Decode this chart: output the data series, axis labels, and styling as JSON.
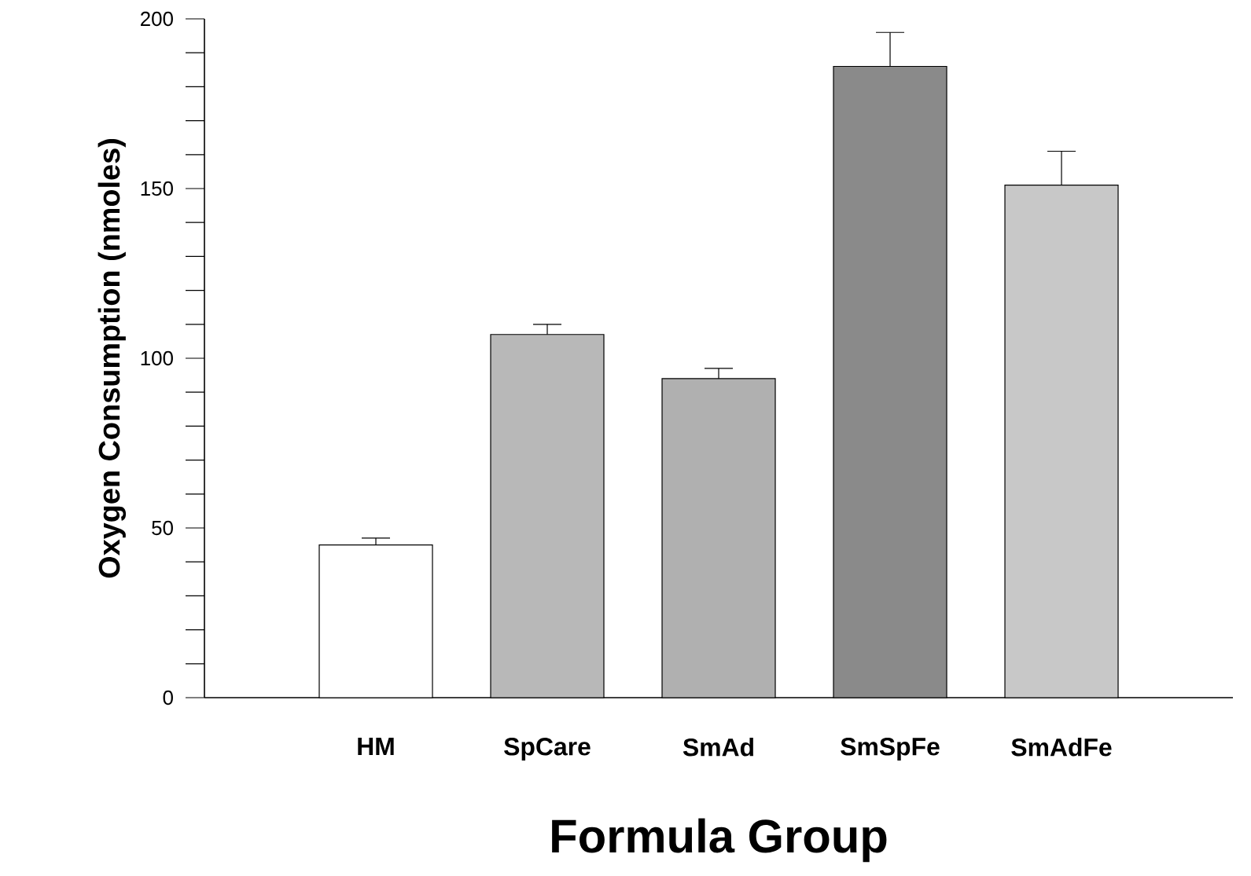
{
  "chart_data": {
    "type": "bar",
    "xlabel": "Formula Group",
    "ylabel": "Oxygen Consumption (nmoles)",
    "categories": [
      "HM",
      "SpCare",
      "SmAd",
      "SmSpFe",
      "SmAdFe"
    ],
    "values": [
      45,
      107,
      94,
      186,
      151
    ],
    "errors": [
      2,
      3,
      3,
      10,
      10
    ],
    "colors": [
      "#ffffff",
      "#b8b8b8",
      "#b0b0b0",
      "#8a8a8a",
      "#c8c8c8"
    ],
    "ylim": [
      0,
      200
    ],
    "yticks": [
      0,
      50,
      100,
      150,
      200
    ]
  }
}
